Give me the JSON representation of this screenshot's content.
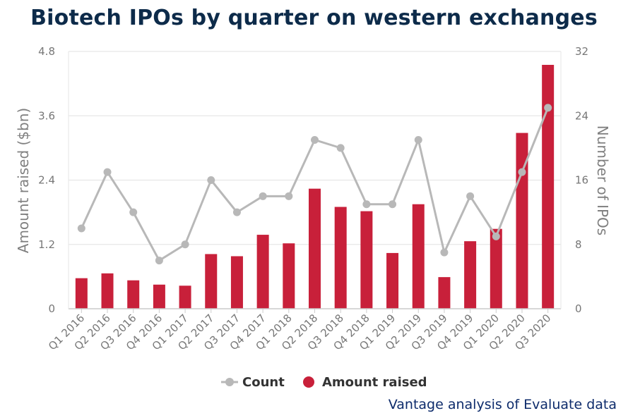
{
  "title": "Biotech IPOs by quarter on western exchanges",
  "source": "Vantage analysis of Evaluate data",
  "colors": {
    "bar": "#c8203a",
    "line": "#b8b8b8",
    "grid": "#e6e6e6"
  },
  "chart_data": {
    "type": "bar",
    "categories": [
      "Q1 2016",
      "Q2 2016",
      "Q3 2016",
      "Q4 2016",
      "Q1 2017",
      "Q2 2017",
      "Q3 2017",
      "Q4 2017",
      "Q1 2018",
      "Q2 2018",
      "Q3 2018",
      "Q4 2018",
      "Q1 2019",
      "Q2 2019",
      "Q3 2019",
      "Q4 2019",
      "Q1 2020",
      "Q2 2020",
      "Q3 2020"
    ],
    "series": [
      {
        "name": "Amount raised",
        "type": "bar",
        "axis": "left",
        "values": [
          0.57,
          0.66,
          0.53,
          0.45,
          0.43,
          1.02,
          0.98,
          1.38,
          1.22,
          2.24,
          1.9,
          1.82,
          1.04,
          1.95,
          0.59,
          1.26,
          1.49,
          3.28,
          4.55
        ]
      },
      {
        "name": "Count",
        "type": "line",
        "axis": "right",
        "values": [
          10,
          17,
          12,
          6,
          8,
          16,
          12,
          14,
          14,
          21,
          20,
          13,
          13,
          21,
          7,
          14,
          9,
          17,
          25
        ]
      }
    ],
    "ylabel_left": "Amount raised ($bn)",
    "ylabel_right": "Number of IPOs",
    "ylim_left": [
      0,
      4.8
    ],
    "ylim_right": [
      0,
      32
    ],
    "yticks_left": [
      "0",
      "1.2",
      "2.4",
      "3.6",
      "4.8"
    ],
    "yticks_right": [
      "0",
      "8",
      "16",
      "24",
      "32"
    ],
    "grid": true,
    "legend": {
      "placement": "bottom",
      "items": [
        "Count",
        "Amount raised"
      ]
    }
  }
}
